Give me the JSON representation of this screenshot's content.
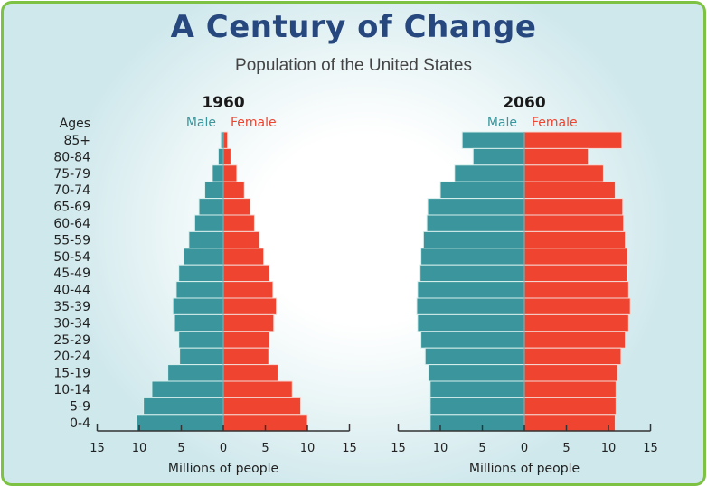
{
  "title": "A Century of Change",
  "subtitle": "Population of the United States",
  "colors": {
    "male": "#3a969c",
    "female": "#ee4430",
    "title": "#27477f",
    "border": "#7dc242"
  },
  "chart_data": [
    {
      "type": "bar",
      "subtype": "population-pyramid",
      "title": "1960",
      "ages_label": "Ages",
      "legend": [
        "Male",
        "Female"
      ],
      "categories": [
        "85+",
        "80-84",
        "75-79",
        "70-74",
        "65-69",
        "60-64",
        "55-59",
        "50-54",
        "45-49",
        "40-44",
        "35-39",
        "30-34",
        "25-29",
        "20-24",
        "15-19",
        "10-14",
        "5-9",
        "0-4"
      ],
      "series": [
        {
          "name": "Male",
          "values": [
            0.3,
            0.6,
            1.3,
            2.2,
            2.9,
            3.4,
            4.1,
            4.7,
            5.3,
            5.6,
            6.0,
            5.8,
            5.3,
            5.2,
            6.6,
            8.5,
            9.5,
            10.3
          ]
        },
        {
          "name": "Female",
          "values": [
            0.5,
            0.9,
            1.6,
            2.5,
            3.2,
            3.7,
            4.3,
            4.8,
            5.5,
            5.9,
            6.3,
            6.0,
            5.5,
            5.4,
            6.5,
            8.2,
            9.2,
            10.0
          ]
        }
      ],
      "xlabel": "Millions of people",
      "xticks": [
        "15",
        "10",
        "5",
        "0",
        "5",
        "10",
        "15"
      ],
      "xlim": [
        -15,
        15
      ],
      "grid": false
    },
    {
      "type": "bar",
      "subtype": "population-pyramid",
      "title": "2060",
      "legend": [
        "Male",
        "Female"
      ],
      "categories": [
        "85+",
        "80-84",
        "75-79",
        "70-74",
        "65-69",
        "60-64",
        "55-59",
        "50-54",
        "45-49",
        "40-44",
        "35-39",
        "30-34",
        "25-29",
        "20-24",
        "15-19",
        "10-14",
        "5-9",
        "0-4"
      ],
      "series": [
        {
          "name": "Male",
          "values": [
            7.4,
            6.1,
            8.3,
            10.0,
            11.5,
            11.6,
            12.0,
            12.3,
            12.4,
            12.7,
            12.8,
            12.7,
            12.3,
            11.8,
            11.4,
            11.2,
            11.2,
            11.2
          ]
        },
        {
          "name": "Female",
          "values": [
            11.6,
            7.6,
            9.4,
            10.8,
            11.7,
            11.8,
            12.0,
            12.3,
            12.2,
            12.4,
            12.6,
            12.4,
            12.0,
            11.5,
            11.1,
            10.9,
            10.9,
            10.8
          ]
        }
      ],
      "xlabel": "Millions of people",
      "xticks": [
        "15",
        "10",
        "5",
        "0",
        "5",
        "10",
        "15"
      ],
      "xlim": [
        -15,
        15
      ],
      "grid": false
    }
  ]
}
